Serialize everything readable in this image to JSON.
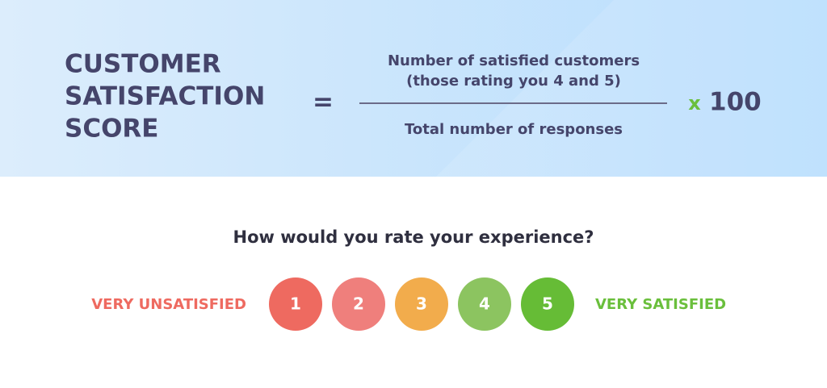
{
  "formula": {
    "label_lines": [
      "CUSTOMER",
      "SATISFACTION",
      "SCORE"
    ],
    "equals": "=",
    "numerator_lines": [
      "Number of satisfied customers",
      "(those rating you 4 and 5)"
    ],
    "denominator": "Total number of responses",
    "times": "x",
    "multiplier": "100"
  },
  "survey": {
    "question": "How would you rate your experience?",
    "low_label": "VERY UNSATISFIED",
    "high_label": "VERY SATISFIED",
    "ratings": [
      "1",
      "2",
      "3",
      "4",
      "5"
    ]
  }
}
